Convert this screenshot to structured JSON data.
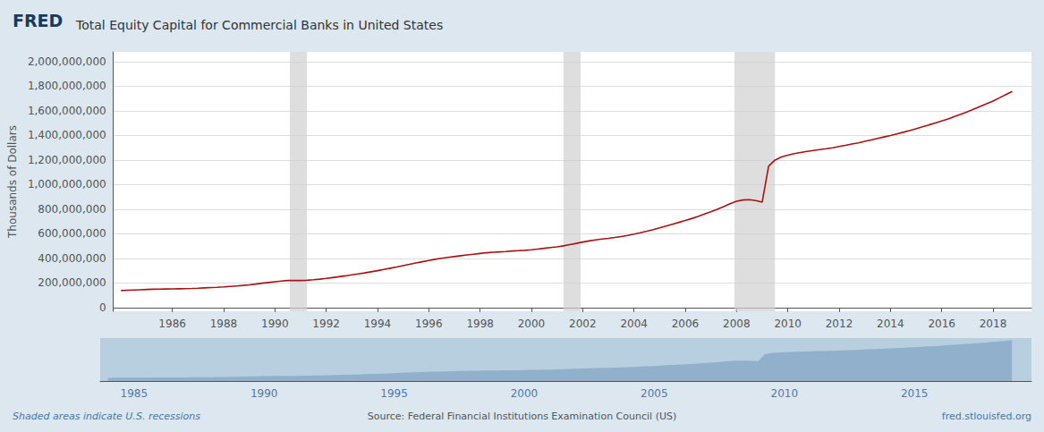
{
  "chart_data": [
    {
      "type": "line",
      "title": "Total Equity Capital for Commercial Banks in United States",
      "ylabel": "Thousands of Dollars",
      "annotations": [
        "FRED",
        "Shaded areas indicate U.S. recessions",
        "Source: Federal Financial Institutions Examination Council (US)",
        "fred.stlouisfed.org"
      ],
      "color": "#aa1111",
      "grid": true,
      "recessions": [
        [
          1990.58,
          1991.25
        ],
        [
          2001.25,
          2001.92
        ],
        [
          2007.92,
          2009.5
        ]
      ],
      "xlim": [
        1983.7,
        2019.5
      ],
      "xticks": [
        1986,
        1988,
        1990,
        1992,
        1994,
        1996,
        1998,
        2000,
        2002,
        2004,
        2006,
        2008,
        2010,
        2012,
        2014,
        2016,
        2018
      ],
      "ylim": [
        -30000000,
        2080000000
      ],
      "yticks": [
        0,
        {
          "value": 200000000,
          "label": "200,000,000"
        },
        {
          "value": 400000000,
          "label": "400,000,000"
        },
        {
          "value": 600000000,
          "label": "600,000,000"
        },
        {
          "value": 800000000,
          "label": "800,000,000"
        },
        {
          "value": 1000000000,
          "label": "1,000,000,000"
        },
        {
          "value": 1200000000,
          "label": "1,200,000,000"
        },
        {
          "value": 1400000000,
          "label": "1,400,000,000"
        },
        {
          "value": 1600000000,
          "label": "1,600,000,000"
        },
        {
          "value": 1800000000,
          "label": "1,800,000,000"
        },
        {
          "value": 2000000000,
          "label": "2,000,000,000"
        }
      ],
      "x": [
        1984.0,
        1984.25,
        1984.5,
        1984.75,
        1985.0,
        1985.25,
        1985.5,
        1985.75,
        1986.0,
        1986.25,
        1986.5,
        1986.75,
        1987.0,
        1987.25,
        1987.5,
        1987.75,
        1988.0,
        1988.25,
        1988.5,
        1988.75,
        1989.0,
        1989.25,
        1989.5,
        1989.75,
        1990.0,
        1990.25,
        1990.5,
        1990.75,
        1991.0,
        1991.25,
        1991.5,
        1991.75,
        1992.0,
        1992.25,
        1992.5,
        1992.75,
        1993.0,
        1993.25,
        1993.5,
        1993.75,
        1994.0,
        1994.25,
        1994.5,
        1994.75,
        1995.0,
        1995.25,
        1995.5,
        1995.75,
        1996.0,
        1996.25,
        1996.5,
        1996.75,
        1997.0,
        1997.25,
        1997.5,
        1997.75,
        1998.0,
        1998.25,
        1998.5,
        1998.75,
        1999.0,
        1999.25,
        1999.5,
        1999.75,
        2000.0,
        2000.25,
        2000.5,
        2000.75,
        2001.0,
        2001.25,
        2001.5,
        2001.75,
        2002.0,
        2002.25,
        2002.5,
        2002.75,
        2003.0,
        2003.25,
        2003.5,
        2003.75,
        2004.0,
        2004.25,
        2004.5,
        2004.75,
        2005.0,
        2005.25,
        2005.5,
        2005.75,
        2006.0,
        2006.25,
        2006.5,
        2006.75,
        2007.0,
        2007.25,
        2007.5,
        2007.75,
        2008.0,
        2008.25,
        2008.5,
        2008.75,
        2009.0,
        2009.25,
        2009.5,
        2009.75,
        2010.0,
        2010.25,
        2010.5,
        2010.75,
        2011.0,
        2011.25,
        2011.5,
        2011.75,
        2012.0,
        2012.25,
        2012.5,
        2012.75,
        2013.0,
        2013.25,
        2013.5,
        2013.75,
        2014.0,
        2014.25,
        2014.5,
        2014.75,
        2015.0,
        2015.25,
        2015.5,
        2015.75,
        2016.0,
        2016.25,
        2016.5,
        2016.75,
        2017.0,
        2017.25,
        2017.5,
        2017.75,
        2018.0,
        2018.25,
        2018.5,
        2018.75
      ],
      "values": [
        138000000,
        141000000,
        143000000,
        145000000,
        147000000,
        149000000,
        150000000,
        151000000,
        152000000,
        153000000,
        154000000,
        155000000,
        157000000,
        160000000,
        163000000,
        165000000,
        168000000,
        172000000,
        176000000,
        180000000,
        185000000,
        191000000,
        198000000,
        204000000,
        210000000,
        216000000,
        220000000,
        221000000,
        220000000,
        222000000,
        226000000,
        231000000,
        237000000,
        244000000,
        251000000,
        258000000,
        266000000,
        274000000,
        282000000,
        291000000,
        300000000,
        310000000,
        320000000,
        330000000,
        341000000,
        352000000,
        363000000,
        373000000,
        383000000,
        393000000,
        401000000,
        408000000,
        415000000,
        422000000,
        428000000,
        434000000,
        440000000,
        446000000,
        450000000,
        453000000,
        456000000,
        460000000,
        463000000,
        466000000,
        470000000,
        476000000,
        482000000,
        488000000,
        494000000,
        502000000,
        512000000,
        522000000,
        533000000,
        542000000,
        550000000,
        557000000,
        563000000,
        570000000,
        578000000,
        587000000,
        597000000,
        609000000,
        621000000,
        634000000,
        648000000,
        663000000,
        678000000,
        693000000,
        708000000,
        724000000,
        742000000,
        761000000,
        780000000,
        800000000,
        822000000,
        845000000,
        865000000,
        875000000,
        878000000,
        870000000,
        858000000,
        1150000000,
        1200000000,
        1225000000,
        1240000000,
        1252000000,
        1262000000,
        1270000000,
        1278000000,
        1285000000,
        1292000000,
        1300000000,
        1310000000,
        1320000000,
        1330000000,
        1340000000,
        1352000000,
        1364000000,
        1376000000,
        1388000000,
        1400000000,
        1413000000,
        1426000000,
        1440000000,
        1455000000,
        1470000000,
        1486000000,
        1502000000,
        1518000000,
        1534000000,
        1554000000,
        1572000000,
        1592000000,
        1614000000,
        1636000000,
        1658000000,
        1680000000,
        1706000000,
        1732000000,
        1758000000
      ]
    },
    {
      "type": "area",
      "color": "#8aaac8",
      "tick_labels": "x",
      "xlim": [
        1983.7,
        2019.5
      ],
      "xticks": [
        1985,
        1990,
        1995,
        2000,
        2005,
        2010,
        2015
      ],
      "ylim": [
        0,
        1845900000
      ],
      "x": [
        1984.0,
        1984.25,
        1984.5,
        1984.75,
        1985.0,
        1985.25,
        1985.5,
        1985.75,
        1986.0,
        1986.25,
        1986.5,
        1986.75,
        1987.0,
        1987.25,
        1987.5,
        1987.75,
        1988.0,
        1988.25,
        1988.5,
        1988.75,
        1989.0,
        1989.25,
        1989.5,
        1989.75,
        1990.0,
        1990.25,
        1990.5,
        1990.75,
        1991.0,
        1991.25,
        1991.5,
        1991.75,
        1992.0,
        1992.25,
        1992.5,
        1992.75,
        1993.0,
        1993.25,
        1993.5,
        1993.75,
        1994.0,
        1994.25,
        1994.5,
        1994.75,
        1995.0,
        1995.25,
        1995.5,
        1995.75,
        1996.0,
        1996.25,
        1996.5,
        1996.75,
        1997.0,
        1997.25,
        1997.5,
        1997.75,
        1998.0,
        1998.25,
        1998.5,
        1998.75,
        1999.0,
        1999.25,
        1999.5,
        1999.75,
        2000.0,
        2000.25,
        2000.5,
        2000.75,
        2001.0,
        2001.25,
        2001.5,
        2001.75,
        2002.0,
        2002.25,
        2002.5,
        2002.75,
        2003.0,
        2003.25,
        2003.5,
        2003.75,
        2004.0,
        2004.25,
        2004.5,
        2004.75,
        2005.0,
        2005.25,
        2005.5,
        2005.75,
        2006.0,
        2006.25,
        2006.5,
        2006.75,
        2007.0,
        2007.25,
        2007.5,
        2007.75,
        2008.0,
        2008.25,
        2008.5,
        2008.75,
        2009.0,
        2009.25,
        2009.5,
        2009.75,
        2010.0,
        2010.25,
        2010.5,
        2010.75,
        2011.0,
        2011.25,
        2011.5,
        2011.75,
        2012.0,
        2012.25,
        2012.5,
        2012.75,
        2013.0,
        2013.25,
        2013.5,
        2013.75,
        2014.0,
        2014.25,
        2014.5,
        2014.75,
        2015.0,
        2015.25,
        2015.5,
        2015.75,
        2016.0,
        2016.25,
        2016.5,
        2016.75,
        2017.0,
        2017.25,
        2017.5,
        2017.75,
        2018.0,
        2018.25,
        2018.5,
        2018.75
      ],
      "values": [
        138000000,
        141000000,
        143000000,
        145000000,
        147000000,
        149000000,
        150000000,
        151000000,
        152000000,
        153000000,
        154000000,
        155000000,
        157000000,
        160000000,
        163000000,
        165000000,
        168000000,
        172000000,
        176000000,
        180000000,
        185000000,
        191000000,
        198000000,
        204000000,
        210000000,
        216000000,
        220000000,
        221000000,
        220000000,
        222000000,
        226000000,
        231000000,
        237000000,
        244000000,
        251000000,
        258000000,
        266000000,
        274000000,
        282000000,
        291000000,
        300000000,
        310000000,
        320000000,
        330000000,
        341000000,
        352000000,
        363000000,
        373000000,
        383000000,
        393000000,
        401000000,
        408000000,
        415000000,
        422000000,
        428000000,
        434000000,
        440000000,
        446000000,
        450000000,
        453000000,
        456000000,
        460000000,
        463000000,
        466000000,
        470000000,
        476000000,
        482000000,
        488000000,
        494000000,
        502000000,
        512000000,
        522000000,
        533000000,
        542000000,
        550000000,
        557000000,
        563000000,
        570000000,
        578000000,
        587000000,
        597000000,
        609000000,
        621000000,
        634000000,
        648000000,
        663000000,
        678000000,
        693000000,
        708000000,
        724000000,
        742000000,
        761000000,
        780000000,
        800000000,
        822000000,
        845000000,
        865000000,
        875000000,
        878000000,
        870000000,
        858000000,
        1150000000,
        1200000000,
        1225000000,
        1240000000,
        1252000000,
        1262000000,
        1270000000,
        1278000000,
        1285000000,
        1292000000,
        1300000000,
        1310000000,
        1320000000,
        1330000000,
        1340000000,
        1352000000,
        1364000000,
        1376000000,
        1388000000,
        1400000000,
        1413000000,
        1426000000,
        1440000000,
        1455000000,
        1470000000,
        1486000000,
        1502000000,
        1518000000,
        1534000000,
        1554000000,
        1572000000,
        1592000000,
        1614000000,
        1636000000,
        1658000000,
        1680000000,
        1706000000,
        1732000000,
        1758000000
      ]
    }
  ]
}
